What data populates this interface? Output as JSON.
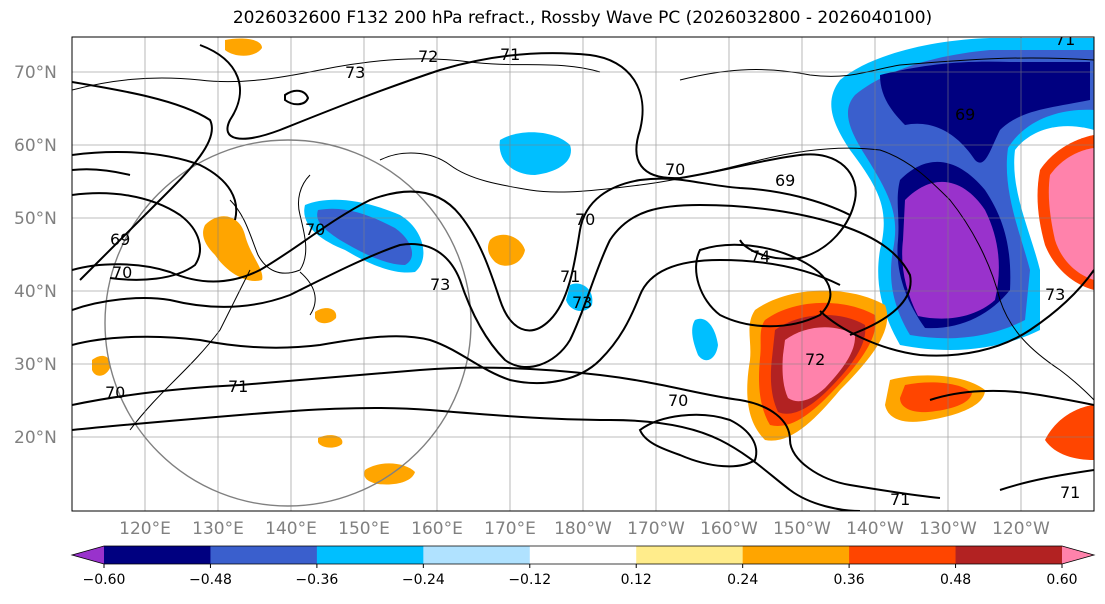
{
  "title": "2026032600 F132 200 hPa refract., Rossby Wave PC (2026032800 - 2026040100)",
  "lat_labels": [
    "70°N",
    "60°N",
    "50°N",
    "40°N",
    "30°N",
    "20°N"
  ],
  "lon_labels": [
    "120°E",
    "130°E",
    "140°E",
    "150°E",
    "160°E",
    "170°E",
    "180°W",
    "170°W",
    "160°W",
    "150°W",
    "140°W",
    "130°W",
    "120°W"
  ],
  "contour_labels": [
    "72",
    "73",
    "71",
    "69",
    "70",
    "71",
    "69",
    "70",
    "70",
    "70",
    "69",
    "74",
    "70",
    "71",
    "73",
    "73",
    "71",
    "72",
    "70",
    "71",
    "71",
    "73"
  ],
  "colorbar": {
    "ticks": [
      "−0.60",
      "−0.48",
      "−0.36",
      "−0.24",
      "−0.12",
      "0.12",
      "0.24",
      "0.36",
      "0.48",
      "0.60"
    ],
    "colors": [
      "#9932cc",
      "#000080",
      "#3a5fcd",
      "#00bfff",
      "#b0e2ff",
      "#ffffff",
      "#ffec8b",
      "#ffa500",
      "#ff4500",
      "#b22222",
      "#ff82ab"
    ]
  }
}
